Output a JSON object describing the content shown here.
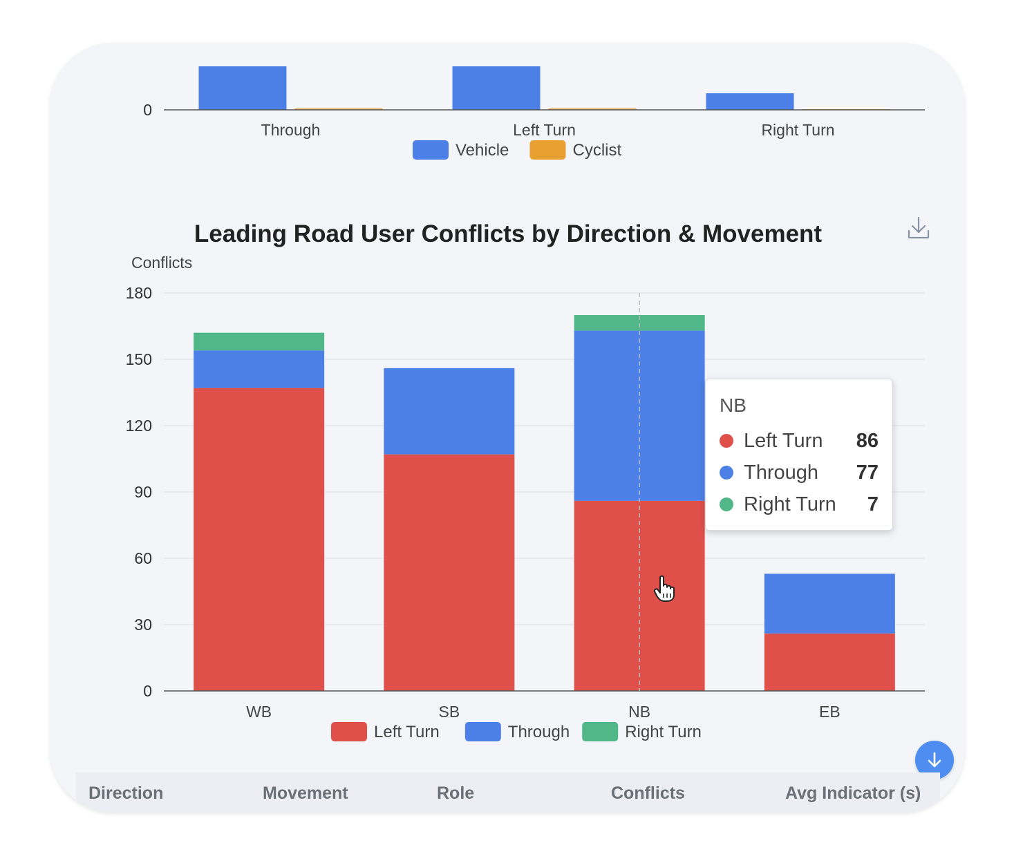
{
  "top_chart": {
    "chart_data": {
      "type": "bar",
      "categories": [
        "Through",
        "Left Turn",
        "Right Turn"
      ],
      "series": [
        {
          "name": "Vehicle",
          "color": "#4d80e6",
          "values": [
            63,
            63,
            24
          ]
        },
        {
          "name": "Cyclist",
          "color": "#e8a030",
          "values": [
            2,
            2,
            1
          ]
        }
      ],
      "ylim": [
        0,
        80
      ],
      "visible_tick": "0"
    }
  },
  "main_chart": {
    "chart_data": {
      "type": "bar",
      "stacked": true,
      "title": "Leading Road User Conflicts by Direction & Movement",
      "ylabel": "Conflicts",
      "xlabel": "",
      "categories": [
        "WB",
        "SB",
        "NB",
        "EB"
      ],
      "yticks": [
        "0",
        "30",
        "60",
        "90",
        "120",
        "150",
        "180"
      ],
      "ylim": [
        0,
        180
      ],
      "grid": true,
      "legend_position": "bottom",
      "series": [
        {
          "name": "Left Turn",
          "color": "#e0504a",
          "values": [
            137,
            107,
            86,
            26
          ]
        },
        {
          "name": "Through",
          "color": "#4d80e6",
          "values": [
            17,
            39,
            77,
            27
          ]
        },
        {
          "name": "Right Turn",
          "color": "#52b788",
          "values": [
            8,
            0,
            7,
            0
          ]
        }
      ]
    },
    "tooltip": {
      "title": "NB",
      "rows": [
        {
          "label": "Left Turn",
          "value": "86",
          "color": "#e0504a"
        },
        {
          "label": "Through",
          "value": "77",
          "color": "#4d80e6"
        },
        {
          "label": "Right Turn",
          "value": "7",
          "color": "#52b788"
        }
      ]
    }
  },
  "table": {
    "headers": [
      "Direction",
      "Movement",
      "Role",
      "Conflicts",
      "Avg Indicator (s)"
    ]
  },
  "icons": {
    "download": "download-icon",
    "scroll": "arrow-down-icon",
    "cursor": "hand-pointer-icon"
  }
}
